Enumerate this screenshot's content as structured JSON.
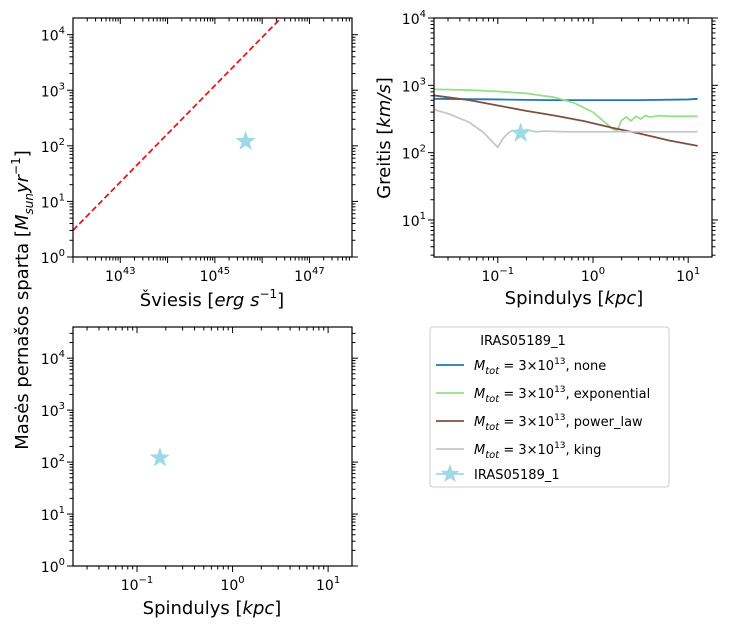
{
  "chart_data": [
    {
      "type": "scatter",
      "panel": "top-left",
      "xlabel_prefix": "Šviesis [",
      "xlabel_math": "erg s",
      "xlabel_sup": "−1",
      "xlabel_suffix": "]",
      "ylabel_prefix": "Masės pernašos sparta [",
      "ylabel_math": "M",
      "ylabel_sub": "sun",
      "ylabel_math2": "yr",
      "ylabel_sup": "−1",
      "ylabel_suffix": "]",
      "xscale": "log",
      "yscale": "log",
      "xlim_log10": [
        42.0,
        47.9
      ],
      "ylim_log10": [
        0,
        4.3
      ],
      "xtick_labels": [
        {
          "base": "10",
          "exp": "43",
          "log": 43
        },
        {
          "base": "10",
          "exp": "45",
          "log": 45
        },
        {
          "base": "10",
          "exp": "47",
          "log": 47
        }
      ],
      "ytick_labels": [
        {
          "base": "10",
          "exp": "0",
          "log": 0
        },
        {
          "base": "10",
          "exp": "1",
          "log": 1
        },
        {
          "base": "10",
          "exp": "2",
          "log": 2
        },
        {
          "base": "10",
          "exp": "3",
          "log": 3
        },
        {
          "base": "10",
          "exp": "4",
          "log": 4
        }
      ],
      "series": [
        {
          "style": "dashed-line",
          "color": "#e8191a",
          "x_log10": [
            42.0,
            46.4
          ],
          "y_log10": [
            0.48,
            4.3
          ]
        },
        {
          "style": "star",
          "color": "#9fd9e6",
          "x_log10": [
            45.65
          ],
          "y_log10": [
            2.08
          ]
        }
      ]
    },
    {
      "type": "line",
      "panel": "top-right",
      "xlabel_prefix": "Spindulys [",
      "xlabel_math": "kpc",
      "xlabel_suffix": "]",
      "ylabel_prefix": "Greitis [",
      "ylabel_math": "km/s",
      "ylabel_suffix": "]",
      "xscale": "log",
      "yscale": "log",
      "xlim_log10": [
        -1.67,
        1.25
      ],
      "ylim_log10": [
        0.45,
        4.0
      ],
      "xtick_labels": [
        {
          "base": "10",
          "exp": "−1",
          "log": -1
        },
        {
          "base": "10",
          "exp": "0",
          "log": 0
        },
        {
          "base": "10",
          "exp": "1",
          "log": 1
        }
      ],
      "ytick_labels": [
        {
          "base": "10",
          "exp": "1",
          "log": 1
        },
        {
          "base": "10",
          "exp": "2",
          "log": 2
        },
        {
          "base": "10",
          "exp": "3",
          "log": 3
        },
        {
          "base": "10",
          "exp": "4",
          "log": 4
        }
      ],
      "series": [
        {
          "key": "none",
          "color": "#1f77b4",
          "x_log10": [
            -1.67,
            -1.0,
            -0.5,
            0.0,
            0.5,
            1.0,
            1.1
          ],
          "y_log10": [
            2.8,
            2.79,
            2.78,
            2.78,
            2.78,
            2.79,
            2.8
          ]
        },
        {
          "key": "exponential",
          "color": "#98df8a",
          "x_log10": [
            -1.67,
            -1.3,
            -1.0,
            -0.7,
            -0.4,
            -0.2,
            0.0,
            0.1,
            0.2,
            0.25,
            0.3,
            0.35,
            0.4,
            0.45,
            0.5,
            0.55,
            0.6,
            0.7,
            0.8,
            1.1
          ],
          "y_log10": [
            2.94,
            2.93,
            2.91,
            2.88,
            2.82,
            2.74,
            2.6,
            2.48,
            2.36,
            2.32,
            2.48,
            2.53,
            2.47,
            2.54,
            2.5,
            2.55,
            2.53,
            2.55,
            2.54,
            2.54
          ]
        },
        {
          "key": "power_law",
          "color": "#7f4f3f",
          "x_log10": [
            -1.67,
            -1.3,
            -1.0,
            -0.7,
            -0.4,
            -0.1,
            0.2,
            0.5,
            0.8,
            1.1
          ],
          "y_log10": [
            2.85,
            2.78,
            2.7,
            2.62,
            2.55,
            2.47,
            2.37,
            2.28,
            2.18,
            2.1
          ]
        },
        {
          "key": "king",
          "color": "#c7c7c7",
          "x_log10": [
            -1.67,
            -1.5,
            -1.3,
            -1.15,
            -1.05,
            -1.0,
            -0.95,
            -0.9,
            -0.85,
            -0.8,
            -0.7,
            -0.6,
            -0.5,
            -0.3,
            0.0,
            0.5,
            1.1
          ],
          "y_log10": [
            2.64,
            2.57,
            2.45,
            2.3,
            2.15,
            2.08,
            2.2,
            2.28,
            2.33,
            2.3,
            2.34,
            2.31,
            2.32,
            2.31,
            2.31,
            2.31,
            2.31
          ]
        },
        {
          "key": "star",
          "style": "star",
          "color": "#9fd9e6",
          "x_log10": [
            -0.76
          ],
          "y_log10": [
            2.29
          ]
        }
      ]
    },
    {
      "type": "scatter",
      "panel": "bottom-left",
      "xlabel_prefix": "Spindulys [",
      "xlabel_math": "kpc",
      "xlabel_suffix": "]",
      "xscale": "log",
      "yscale": "log",
      "xlim_log10": [
        -1.67,
        1.25
      ],
      "ylim_log10": [
        0,
        4.6
      ],
      "xtick_labels": [
        {
          "base": "10",
          "exp": "−1",
          "log": -1
        },
        {
          "base": "10",
          "exp": "0",
          "log": 0
        },
        {
          "base": "10",
          "exp": "1",
          "log": 1
        }
      ],
      "ytick_labels": [
        {
          "base": "10",
          "exp": "0",
          "log": 0
        },
        {
          "base": "10",
          "exp": "1",
          "log": 1
        },
        {
          "base": "10",
          "exp": "2",
          "log": 2
        },
        {
          "base": "10",
          "exp": "3",
          "log": 3
        },
        {
          "base": "10",
          "exp": "4",
          "log": 4
        }
      ],
      "series": [
        {
          "style": "star",
          "color": "#9fd9e6",
          "x_log10": [
            -0.76
          ],
          "y_log10": [
            2.08
          ]
        }
      ]
    }
  ],
  "legend": {
    "title": "IRAS05189_1",
    "entries": [
      {
        "color": "#1f77b4",
        "style": "line",
        "m": "M",
        "sub": "tot",
        "eq": " =  3×10",
        "sup": "13",
        "rest": ", none"
      },
      {
        "color": "#98df8a",
        "style": "line",
        "m": "M",
        "sub": "tot",
        "eq": " =  3×10",
        "sup": "13",
        "rest": ", exponential"
      },
      {
        "color": "#7f4f3f",
        "style": "line",
        "m": "M",
        "sub": "tot",
        "eq": " =  3×10",
        "sup": "13",
        "rest": ", power_law"
      },
      {
        "color": "#c7c7c7",
        "style": "line",
        "m": "M",
        "sub": "tot",
        "eq": " =  3×10",
        "sup": "13",
        "rest": ", king"
      },
      {
        "color": "#9fd9e6",
        "style": "star",
        "label": "IRAS05189_1"
      }
    ]
  }
}
